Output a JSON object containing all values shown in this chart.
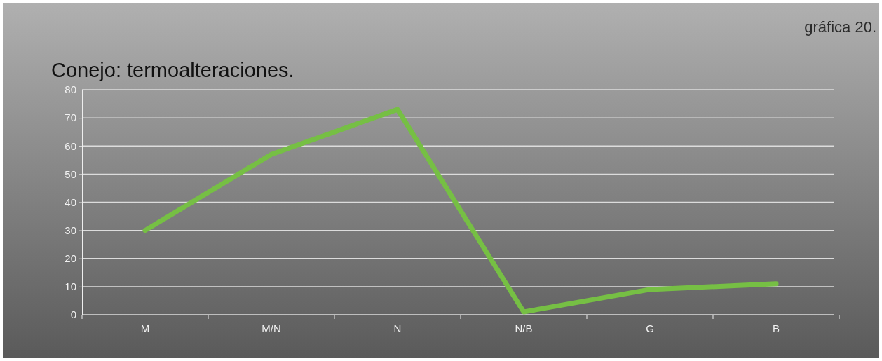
{
  "chart_data": {
    "type": "line",
    "title": "Conejo: termoalteraciones.",
    "annotations": [
      "gráfica 20."
    ],
    "categories": [
      "M",
      "M/N",
      "N",
      "N/B",
      "G",
      "B"
    ],
    "series": [
      {
        "color": "#76bf44",
        "values": [
          30,
          57,
          73,
          1,
          9,
          11
        ]
      }
    ],
    "ylim": [
      0,
      80
    ],
    "yticks": [
      0,
      10,
      20,
      30,
      40,
      50,
      60,
      70,
      80
    ],
    "grid": "y",
    "marker": "none",
    "line_style": "solid"
  }
}
